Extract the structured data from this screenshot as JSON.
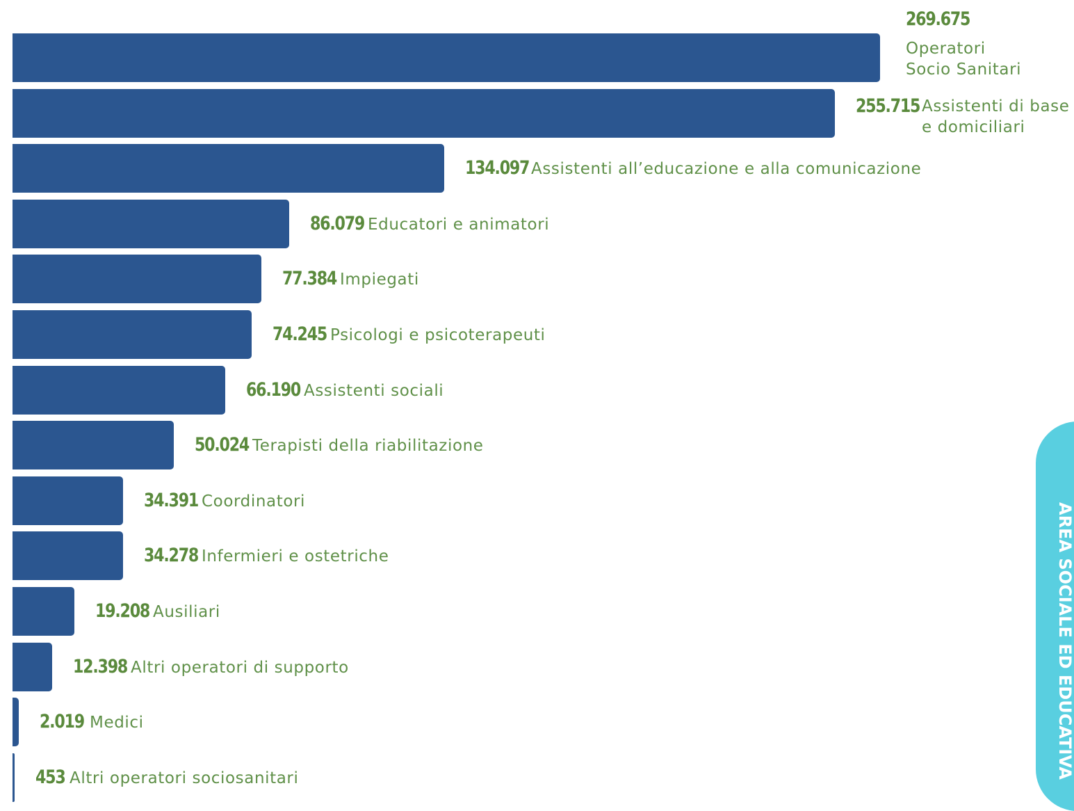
{
  "chart_data": {
    "type": "bar",
    "orientation": "horizontal",
    "categories": [
      "Operatori Socio Sanitari",
      "Assistenti di base e domiciliari",
      "Assistenti all’educazione e alla comunicazione",
      "Educatori e animatori",
      "Impiegati",
      "Psicologi e psicoterapeuti",
      "Assistenti sociali",
      "Terapisti della riabilitazione",
      "Coordinatori",
      "Infermieri e ostetriche",
      "Ausiliari",
      "Altri operatori di supporto",
      "Medici",
      "Altri operatori  sociosanitari"
    ],
    "values": [
      269675,
      255715,
      134097,
      86079,
      77384,
      74245,
      66190,
      50024,
      34391,
      34278,
      19208,
      12398,
      2019,
      453
    ],
    "value_labels": [
      "269.675",
      "255.715",
      "134.097",
      "86.079",
      "77.384",
      "74.245",
      "66.190",
      "50.024",
      "34.391",
      "34.278",
      "19.208",
      "12.398",
      "2.019",
      "453"
    ],
    "label_lines": [
      [
        "Operatori",
        "Socio Sanitari"
      ],
      [
        "Assistenti di base",
        "e domiciliari"
      ],
      [
        "Assistenti all’educazione e alla comunicazione"
      ],
      [
        "Educatori e animatori"
      ],
      [
        "Impiegati"
      ],
      [
        "Psicologi e psicoterapeuti"
      ],
      [
        "Assistenti sociali"
      ],
      [
        "Terapisti della riabilitazione"
      ],
      [
        "Coordinatori"
      ],
      [
        "Infermieri e ostetriche"
      ],
      [
        "Ausiliari"
      ],
      [
        "Altri operatori di supporto"
      ],
      [
        "Medici"
      ],
      [
        "Altri operatori  sociosanitari"
      ]
    ],
    "xlim": [
      0,
      269675
    ],
    "grid": false,
    "legend": "none",
    "bar_color": "#2b5690",
    "value_color": "#5a8a3c",
    "label_color": "#5f9048"
  },
  "side_tab": {
    "label": "AREA SOCIALE ED EDUCATIVA",
    "color": "#59cfe0"
  }
}
